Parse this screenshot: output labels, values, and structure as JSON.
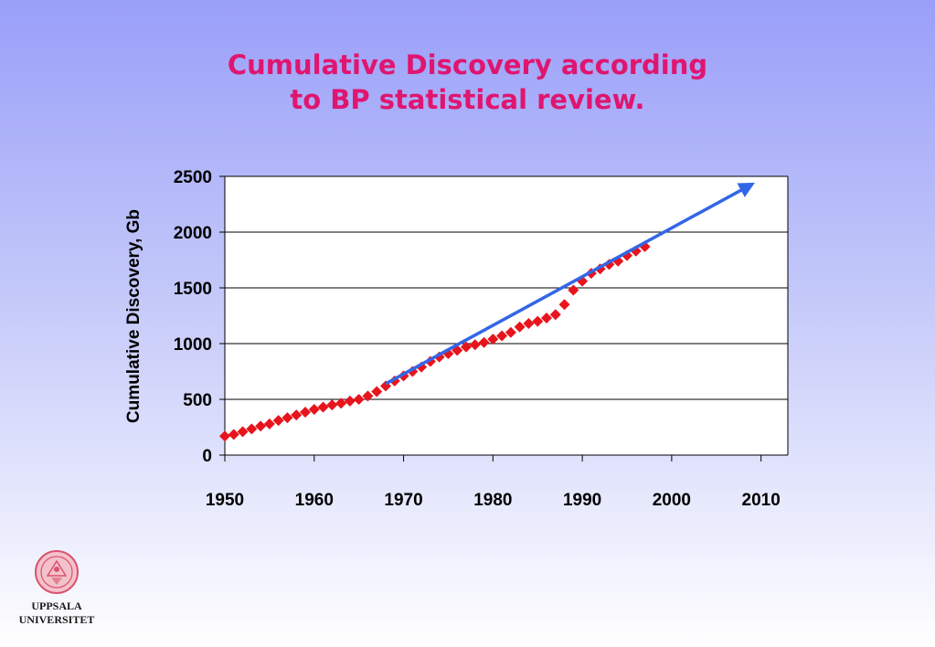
{
  "title_line1": "Cumulative Discovery according",
  "title_line2": "to BP statistical review.",
  "logo": {
    "line1": "UPPSALA",
    "line2": "UNIVERSITET"
  },
  "colors": {
    "title": "#e0156f",
    "points": "#e8141c",
    "trend": "#3366e6",
    "logo": "#d9546e"
  },
  "chart_data": {
    "type": "scatter",
    "ylabel": "Cumulative Discovery, Gb",
    "xlabel": "",
    "xlim": [
      1950,
      2013
    ],
    "ylim": [
      0,
      2500
    ],
    "xticks": [
      1950,
      1960,
      1970,
      1980,
      1990,
      2000,
      2010
    ],
    "yticks": [
      0,
      500,
      1000,
      1500,
      2000,
      2500
    ],
    "grid": "horizontal",
    "legend": "none",
    "series": [
      {
        "marker": "diamond",
        "x": [
          1950,
          1951,
          1952,
          1953,
          1954,
          1955,
          1956,
          1957,
          1958,
          1959,
          1960,
          1961,
          1962,
          1963,
          1964,
          1965,
          1966,
          1967,
          1968,
          1969,
          1970,
          1971,
          1972,
          1973,
          1974,
          1975,
          1976,
          1977,
          1978,
          1979,
          1980,
          1981,
          1982,
          1983,
          1984,
          1985,
          1986,
          1987,
          1988,
          1989,
          1990,
          1991,
          1992,
          1993,
          1994,
          1995,
          1996,
          1997
        ],
        "y": [
          170,
          185,
          210,
          235,
          260,
          280,
          310,
          335,
          360,
          385,
          410,
          430,
          450,
          465,
          485,
          500,
          530,
          570,
          620,
          665,
          710,
          750,
          790,
          840,
          880,
          910,
          940,
          970,
          990,
          1010,
          1040,
          1070,
          1100,
          1150,
          1180,
          1200,
          1230,
          1260,
          1350,
          1480,
          1560,
          1630,
          1670,
          1710,
          1740,
          1790,
          1830,
          1870
        ]
      }
    ],
    "trendline": {
      "x": [
        1968,
        2009
      ],
      "y": [
        640,
        2430
      ],
      "arrow": "end"
    }
  }
}
